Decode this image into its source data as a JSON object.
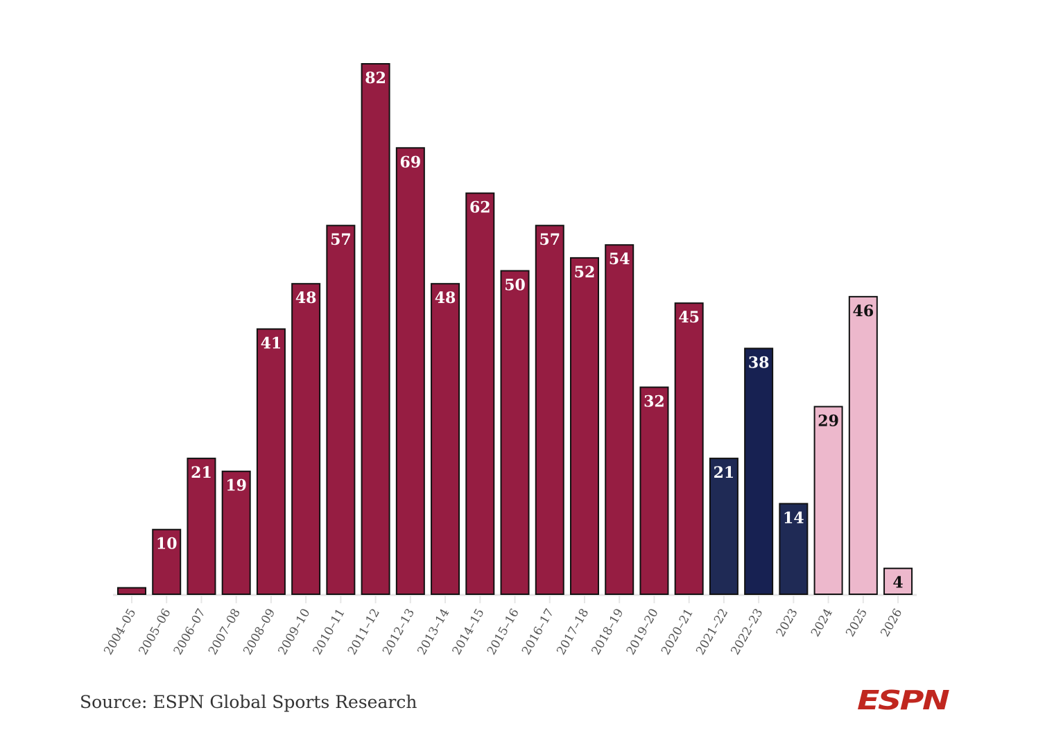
{
  "chart_data": {
    "type": "bar",
    "title": "",
    "xlabel": "",
    "ylabel": "",
    "ylim": [
      0,
      82
    ],
    "grid": false,
    "categories": [
      "2004–05",
      "2005–06",
      "2006–07",
      "2007–08",
      "2008–09",
      "2009–10",
      "2010–11",
      "2011–12",
      "2012–13",
      "2013–14",
      "2014–15",
      "2015–16",
      "2016–17",
      "2017–18",
      "2018–19",
      "2019–20",
      "2020–21",
      "2021–22",
      "2022–23",
      "2023",
      "2024",
      "2025",
      "2026"
    ],
    "values": [
      1,
      10,
      21,
      19,
      41,
      48,
      57,
      82,
      69,
      48,
      62,
      50,
      57,
      52,
      54,
      32,
      45,
      21,
      38,
      14,
      29,
      46,
      4
    ],
    "data_labels": [
      "",
      "10",
      "21",
      "19",
      "41",
      "48",
      "57",
      "82",
      "69",
      "48",
      "62",
      "50",
      "57",
      "52",
      "54",
      "32",
      "45",
      "21",
      "38",
      "14",
      "29",
      "46",
      "4"
    ],
    "colors": [
      "#961d42",
      "#961d42",
      "#961d42",
      "#961d42",
      "#961d42",
      "#961d42",
      "#961d42",
      "#961d42",
      "#961d42",
      "#961d42",
      "#961d42",
      "#961d42",
      "#961d42",
      "#961d42",
      "#961d42",
      "#961d42",
      "#961d42",
      "#1f2a55",
      "#172152",
      "#1f2a55",
      "#edb8cc",
      "#edb8cc",
      "#edb8cc"
    ],
    "label_colors": [
      "#ffffff",
      "#ffffff",
      "#ffffff",
      "#ffffff",
      "#ffffff",
      "#ffffff",
      "#ffffff",
      "#ffffff",
      "#ffffff",
      "#ffffff",
      "#ffffff",
      "#ffffff",
      "#ffffff",
      "#ffffff",
      "#ffffff",
      "#ffffff",
      "#ffffff",
      "#ffffff",
      "#ffffff",
      "#ffffff",
      "#111111",
      "#111111",
      "#111111"
    ]
  },
  "source": "Source: ESPN Global Sports Research",
  "logo_text": "ESPN"
}
